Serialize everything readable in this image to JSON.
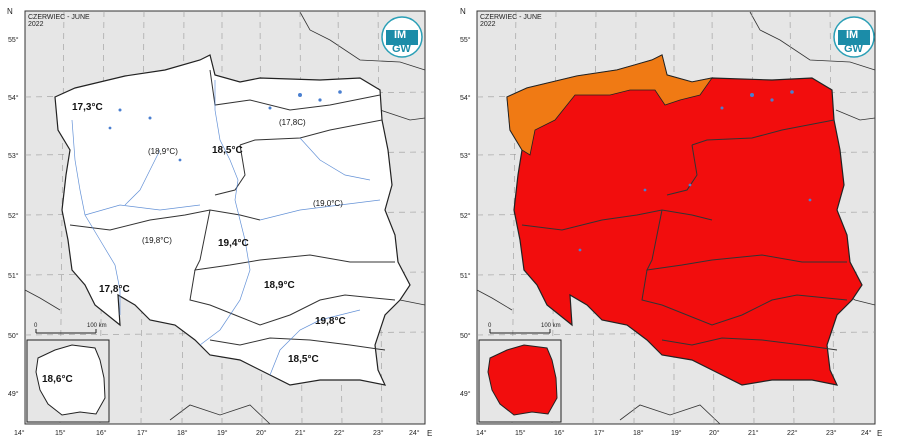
{
  "maps": [
    {
      "title_line1": "CZERWIEC - JUNE",
      "title_line2": "2022",
      "logo_text_top": "IM",
      "logo_text_bottom": "GW",
      "axis_corner_top": "N",
      "axis_corner_bottom": "E",
      "lat_labels": [
        "55°",
        "54°",
        "53°",
        "52°",
        "51°",
        "50°",
        "49°"
      ],
      "lon_labels": [
        "14°",
        "15°",
        "16°",
        "17°",
        "18°",
        "19°",
        "20°",
        "21°",
        "22°",
        "23°",
        "24°"
      ],
      "scale": {
        "start": "0",
        "end": "100 km"
      },
      "inset_value": "18,6°C",
      "region_labels": [
        "17,3°C",
        "(17,8C)",
        "(18,9°C)",
        "18,5°C",
        "(19,0°C)",
        "(19,8°C)",
        "19,4°C",
        "18,9°C",
        "17,8°C",
        "19,8°C",
        "18,5°C"
      ],
      "colors": {
        "land": "#ffffff",
        "rivers": "#4a7fd0",
        "background": "#e6e6e6"
      }
    },
    {
      "title_line1": "CZERWIEC - JUNE",
      "title_line2": "2022",
      "logo_text_top": "IM",
      "logo_text_bottom": "GW",
      "axis_corner_top": "N",
      "axis_corner_bottom": "E",
      "lat_labels": [
        "55°",
        "54°",
        "53°",
        "52°",
        "51°",
        "50°",
        "49°"
      ],
      "lon_labels": [
        "14°",
        "15°",
        "16°",
        "17°",
        "18°",
        "19°",
        "20°",
        "21°",
        "22°",
        "23°",
        "24°"
      ],
      "scale": {
        "start": "0",
        "end": "100 km"
      },
      "colors": {
        "main_fill": "#f20d0d",
        "northwest_fill": "#f07a14",
        "background": "#e6e6e6"
      }
    }
  ]
}
